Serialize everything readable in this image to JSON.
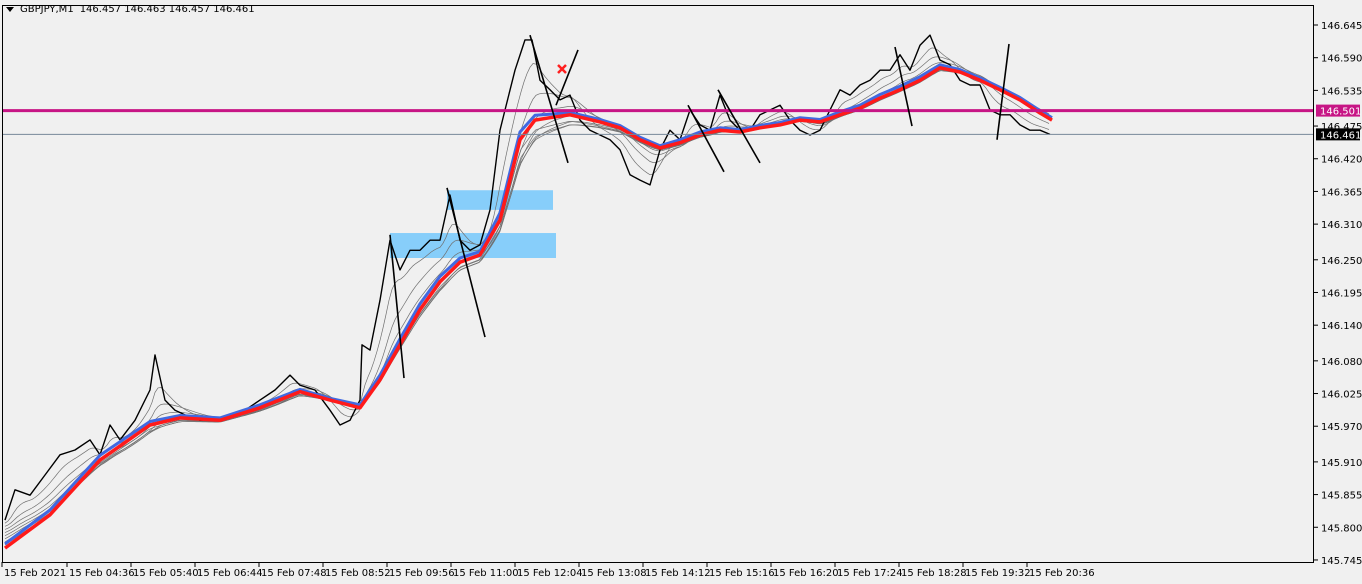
{
  "header": {
    "symbol": "GBPJPY,M1",
    "ohlc": "146.457 146.463 146.457 146.461"
  },
  "colors": {
    "background": "#f0f0f0",
    "price": "#000000",
    "ema_slow": "#ff1a1a",
    "ema_fast": "#4169e1",
    "ribbon": "#707070",
    "level": "#c71585",
    "bid_line": "#778899",
    "zone": "#87cefa",
    "marker": "#ff2020"
  },
  "chart_data": {
    "type": "line",
    "title": "",
    "xlabel": "",
    "ylabel": "",
    "ylim": [
      145.745,
      146.66
    ],
    "grid": false,
    "y_ticks": [
      "146.645",
      "146.590",
      "146.535",
      "146.475",
      "146.420",
      "146.365",
      "146.310",
      "146.250",
      "146.195",
      "146.140",
      "146.080",
      "146.025",
      "145.970",
      "145.910",
      "145.855",
      "145.800",
      "145.745"
    ],
    "x_ticks": [
      {
        "label": "15 Feb 2021",
        "time": "03:31"
      },
      {
        "label": "15 Feb 04:36",
        "time": "04:36"
      },
      {
        "label": "15 Feb 05:40",
        "time": "05:40"
      },
      {
        "label": "15 Feb 06:44",
        "time": "06:44"
      },
      {
        "label": "15 Feb 07:48",
        "time": "07:48"
      },
      {
        "label": "15 Feb 08:52",
        "time": "08:52"
      },
      {
        "label": "15 Feb 09:56",
        "time": "09:56"
      },
      {
        "label": "15 Feb 11:00",
        "time": "11:00"
      },
      {
        "label": "15 Feb 12:04",
        "time": "12:04"
      },
      {
        "label": "15 Feb 13:08",
        "time": "13:08"
      },
      {
        "label": "15 Feb 14:12",
        "time": "14:12"
      },
      {
        "label": "15 Feb 15:16",
        "time": "15:16"
      },
      {
        "label": "15 Feb 16:20",
        "time": "16:20"
      },
      {
        "label": "15 Feb 17:24",
        "time": "17:24"
      },
      {
        "label": "15 Feb 18:28",
        "time": "18:28"
      },
      {
        "label": "15 Feb 19:32",
        "time": "19:32"
      },
      {
        "label": "15 Feb 20:36",
        "time": "20:36"
      }
    ],
    "series": [
      {
        "key": "price",
        "points": [
          [
            "03:34",
            145.812
          ],
          [
            "03:44",
            145.863
          ],
          [
            "03:59",
            145.854
          ],
          [
            "04:14",
            145.888
          ],
          [
            "04:29",
            145.922
          ],
          [
            "04:44",
            145.93
          ],
          [
            "04:59",
            145.947
          ],
          [
            "05:09",
            145.922
          ],
          [
            "05:19",
            145.972
          ],
          [
            "05:29",
            145.947
          ],
          [
            "05:44",
            145.98
          ],
          [
            "05:59",
            146.031
          ],
          [
            "06:04",
            146.09
          ],
          [
            "06:14",
            146.014
          ],
          [
            "06:24",
            145.997
          ],
          [
            "06:34",
            145.989
          ],
          [
            "06:49",
            145.98
          ],
          [
            "07:04",
            145.98
          ],
          [
            "07:19",
            145.989
          ],
          [
            "07:34",
            145.997
          ],
          [
            "07:49",
            146.014
          ],
          [
            "08:04",
            146.031
          ],
          [
            "08:19",
            146.056
          ],
          [
            "08:29",
            146.039
          ],
          [
            "08:44",
            146.031
          ],
          [
            "08:59",
            145.997
          ],
          [
            "09:09",
            145.972
          ],
          [
            "09:19",
            145.98
          ],
          [
            "09:29",
            146.014
          ],
          [
            "09:31",
            146.107
          ],
          [
            "09:39",
            146.098
          ],
          [
            "09:49",
            146.182
          ],
          [
            "09:59",
            146.283
          ],
          [
            "10:09",
            146.233
          ],
          [
            "10:19",
            146.266
          ],
          [
            "10:29",
            146.266
          ],
          [
            "10:39",
            146.283
          ],
          [
            "10:49",
            146.283
          ],
          [
            "10:59",
            146.359
          ],
          [
            "11:09",
            146.283
          ],
          [
            "11:19",
            146.266
          ],
          [
            "11:29",
            146.275
          ],
          [
            "11:39",
            146.334
          ],
          [
            "11:49",
            146.468
          ],
          [
            "11:54",
            146.502
          ],
          [
            "12:04",
            146.569
          ],
          [
            "12:14",
            146.62
          ],
          [
            "12:21",
            146.62
          ],
          [
            "12:29",
            146.552
          ],
          [
            "12:39",
            146.536
          ],
          [
            "12:49",
            146.519
          ],
          [
            "12:59",
            146.527
          ],
          [
            "13:09",
            146.485
          ],
          [
            "13:19",
            146.468
          ],
          [
            "13:29",
            146.46
          ],
          [
            "13:39",
            146.452
          ],
          [
            "13:49",
            146.435
          ],
          [
            "13:59",
            146.393
          ],
          [
            "14:09",
            146.384
          ],
          [
            "14:19",
            146.376
          ],
          [
            "14:29",
            146.435
          ],
          [
            "14:39",
            146.468
          ],
          [
            "14:49",
            146.452
          ],
          [
            "14:59",
            146.502
          ],
          [
            "15:09",
            146.477
          ],
          [
            "15:19",
            146.468
          ],
          [
            "15:29",
            146.527
          ],
          [
            "15:39",
            146.485
          ],
          [
            "15:49",
            146.468
          ],
          [
            "15:59",
            146.468
          ],
          [
            "16:09",
            146.494
          ],
          [
            "16:19",
            146.502
          ],
          [
            "16:29",
            146.51
          ],
          [
            "16:39",
            146.485
          ],
          [
            "16:49",
            146.468
          ],
          [
            "16:59",
            146.46
          ],
          [
            "17:09",
            146.468
          ],
          [
            "17:19",
            146.502
          ],
          [
            "17:29",
            146.536
          ],
          [
            "17:39",
            146.527
          ],
          [
            "17:49",
            146.544
          ],
          [
            "17:59",
            146.552
          ],
          [
            "18:09",
            146.569
          ],
          [
            "18:19",
            146.569
          ],
          [
            "18:29",
            146.595
          ],
          [
            "18:39",
            146.569
          ],
          [
            "18:49",
            146.611
          ],
          [
            "18:59",
            146.628
          ],
          [
            "19:09",
            146.586
          ],
          [
            "19:19",
            146.578
          ],
          [
            "19:29",
            146.552
          ],
          [
            "19:39",
            146.544
          ],
          [
            "19:49",
            146.544
          ],
          [
            "19:59",
            146.502
          ],
          [
            "20:09",
            146.494
          ],
          [
            "20:19",
            146.494
          ],
          [
            "20:29",
            146.477
          ],
          [
            "20:39",
            146.468
          ],
          [
            "20:49",
            146.468
          ],
          [
            "20:59",
            146.461
          ]
        ]
      },
      {
        "key": "ema_slow",
        "points": [
          [
            "03:34",
            145.765
          ],
          [
            "04:19",
            145.821
          ],
          [
            "05:09",
            145.913
          ],
          [
            "05:59",
            145.972
          ],
          [
            "06:29",
            145.984
          ],
          [
            "07:09",
            145.98
          ],
          [
            "07:49",
            146.001
          ],
          [
            "08:29",
            146.028
          ],
          [
            "08:59",
            146.014
          ],
          [
            "09:29",
            146.001
          ],
          [
            "09:49",
            146.048
          ],
          [
            "10:09",
            146.107
          ],
          [
            "10:29",
            146.166
          ],
          [
            "10:49",
            146.213
          ],
          [
            "11:09",
            146.246
          ],
          [
            "11:29",
            146.258
          ],
          [
            "11:49",
            146.317
          ],
          [
            "11:59",
            146.384
          ],
          [
            "12:09",
            146.452
          ],
          [
            "12:24",
            146.485
          ],
          [
            "12:39",
            146.489
          ],
          [
            "12:59",
            146.494
          ],
          [
            "13:29",
            146.482
          ],
          [
            "13:49",
            146.472
          ],
          [
            "14:09",
            146.452
          ],
          [
            "14:29",
            146.438
          ],
          [
            "14:49",
            146.447
          ],
          [
            "15:09",
            146.46
          ],
          [
            "15:29",
            146.468
          ],
          [
            "15:49",
            146.465
          ],
          [
            "16:09",
            146.472
          ],
          [
            "16:29",
            146.477
          ],
          [
            "16:49",
            146.485
          ],
          [
            "17:09",
            146.482
          ],
          [
            "17:29",
            146.494
          ],
          [
            "17:49",
            146.505
          ],
          [
            "18:09",
            146.522
          ],
          [
            "18:29",
            146.536
          ],
          [
            "18:49",
            146.552
          ],
          [
            "19:09",
            146.573
          ],
          [
            "19:29",
            146.566
          ],
          [
            "19:49",
            146.552
          ],
          [
            "20:09",
            146.536
          ],
          [
            "20:29",
            146.519
          ],
          [
            "20:49",
            146.497
          ],
          [
            "21:01",
            146.485
          ]
        ]
      },
      {
        "key": "ema_fast",
        "points": [
          [
            "03:34",
            145.772
          ],
          [
            "04:19",
            145.829
          ],
          [
            "05:09",
            145.921
          ],
          [
            "05:59",
            145.978
          ],
          [
            "06:29",
            145.988
          ],
          [
            "07:09",
            145.984
          ],
          [
            "07:49",
            146.006
          ],
          [
            "08:29",
            146.032
          ],
          [
            "08:59",
            146.017
          ],
          [
            "09:29",
            146.006
          ],
          [
            "09:49",
            146.056
          ],
          [
            "10:09",
            146.117
          ],
          [
            "10:29",
            146.176
          ],
          [
            "10:49",
            146.222
          ],
          [
            "11:09",
            146.253
          ],
          [
            "11:29",
            146.264
          ],
          [
            "11:49",
            146.329
          ],
          [
            "11:59",
            146.398
          ],
          [
            "12:09",
            146.465
          ],
          [
            "12:24",
            146.493
          ],
          [
            "12:39",
            146.495
          ],
          [
            "12:59",
            146.498
          ],
          [
            "13:29",
            146.486
          ],
          [
            "13:49",
            146.476
          ],
          [
            "14:09",
            146.456
          ],
          [
            "14:29",
            146.442
          ],
          [
            "14:49",
            146.452
          ],
          [
            "15:09",
            146.465
          ],
          [
            "15:29",
            146.472
          ],
          [
            "15:49",
            146.469
          ],
          [
            "16:09",
            146.476
          ],
          [
            "16:29",
            146.481
          ],
          [
            "16:49",
            146.489
          ],
          [
            "17:09",
            146.486
          ],
          [
            "17:29",
            146.499
          ],
          [
            "17:49",
            146.51
          ],
          [
            "18:09",
            146.528
          ],
          [
            "18:29",
            146.542
          ],
          [
            "18:49",
            146.558
          ],
          [
            "19:09",
            146.578
          ],
          [
            "19:29",
            146.57
          ],
          [
            "19:49",
            146.556
          ],
          [
            "20:09",
            146.54
          ],
          [
            "20:29",
            146.523
          ],
          [
            "20:49",
            146.501
          ],
          [
            "21:01",
            146.489
          ]
        ]
      }
    ],
    "levels": [
      {
        "key": "resistance",
        "price": 146.501,
        "label": "146.501"
      },
      {
        "key": "bid",
        "price": 146.461,
        "label": "146.461"
      }
    ],
    "zones": [
      {
        "from": "10:56",
        "to": "12:42",
        "high": 146.367,
        "low": 146.334
      },
      {
        "from": "09:59",
        "to": "12:45",
        "high": 146.295,
        "low": 146.253
      }
    ],
    "trendlines": [
      [
        [
          "09:59",
          146.292
        ],
        [
          "10:13",
          146.051
        ]
      ],
      [
        [
          "10:56",
          146.371
        ],
        [
          "11:34",
          146.12
        ]
      ],
      [
        [
          "12:19",
          146.628
        ],
        [
          "12:57",
          146.413
        ]
      ],
      [
        [
          "12:45",
          146.51
        ],
        [
          "13:07",
          146.603
        ]
      ],
      [
        [
          "14:57",
          146.51
        ],
        [
          "15:33",
          146.398
        ]
      ],
      [
        [
          "15:27",
          146.536
        ],
        [
          "16:09",
          146.413
        ]
      ],
      [
        [
          "18:24",
          146.608
        ],
        [
          "18:41",
          146.475
        ]
      ],
      [
        [
          "20:06",
          146.452
        ],
        [
          "20:18",
          146.613
        ]
      ]
    ],
    "markers": [
      {
        "type": "cross",
        "time": "12:51",
        "price": 146.571
      }
    ]
  }
}
